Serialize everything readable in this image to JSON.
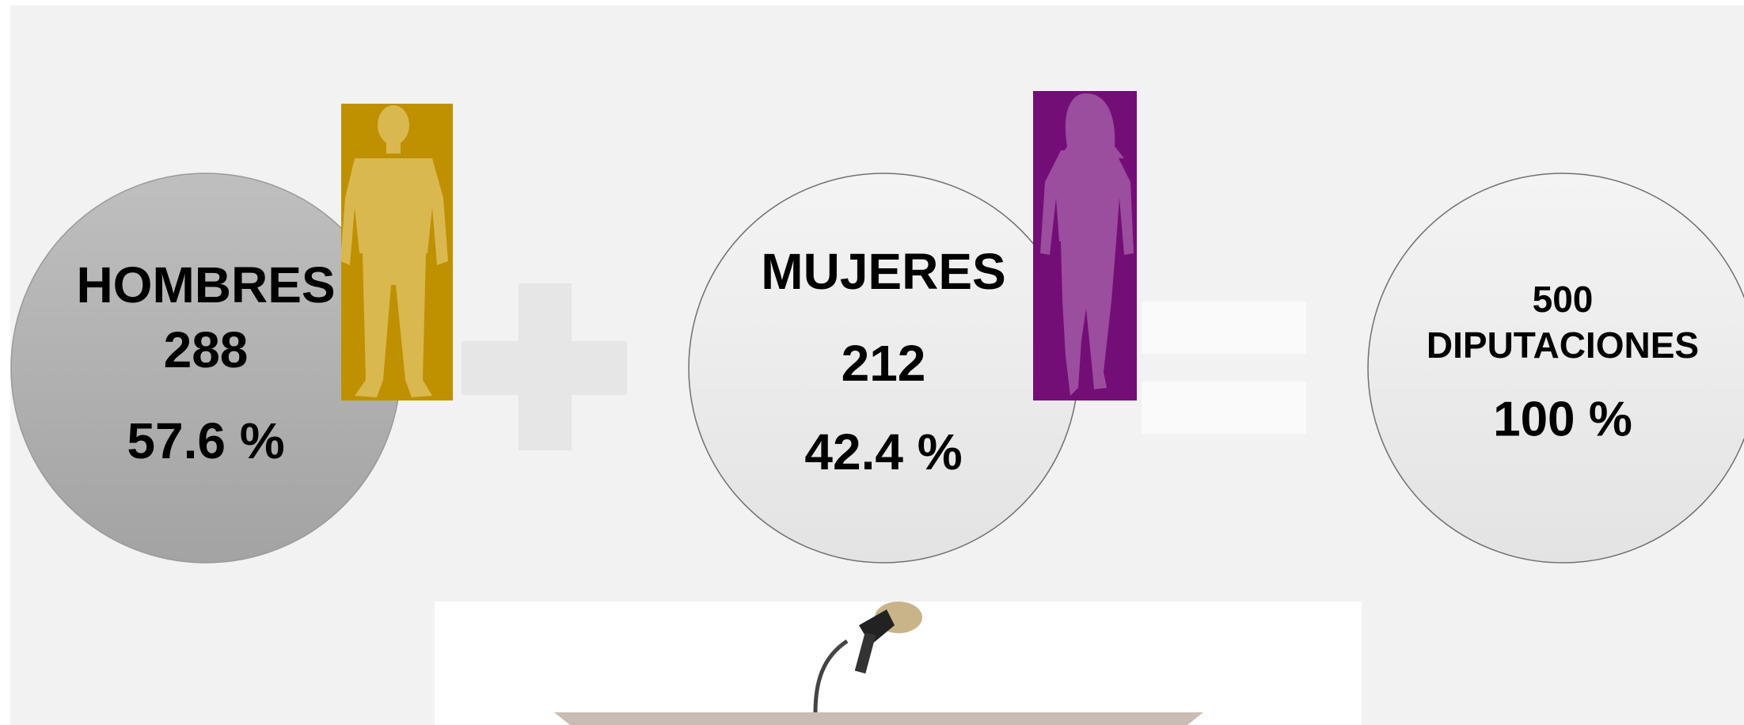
{
  "men": {
    "label": "HOMBRES",
    "count": "288",
    "percent": "57.6 %"
  },
  "women": {
    "label": "MUJERES",
    "count": "212",
    "percent": "42.4 %"
  },
  "total": {
    "count": "500",
    "label": "DIPUTACIONES",
    "percent": "100 %"
  }
}
